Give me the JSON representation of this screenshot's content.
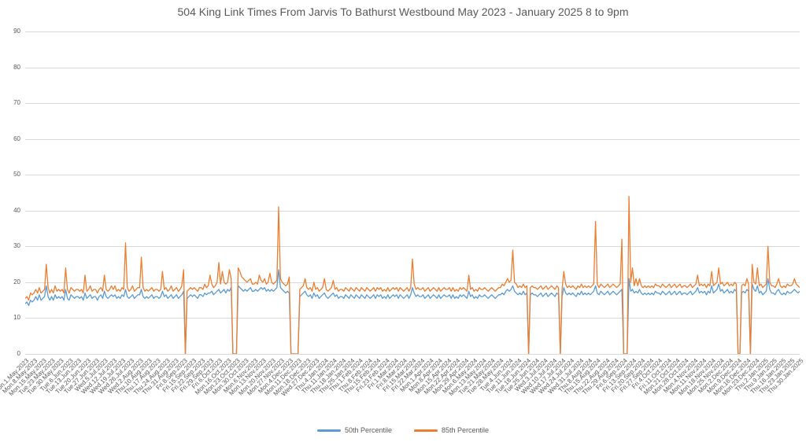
{
  "title": "504 King Link Times From Jarvis To Bathurst Westbound May 2023 - January 2025 8 to 9pm",
  "colors": {
    "p50": "#5B9BD5",
    "p85": "#ED7D31",
    "gridline": "#d9d9d9",
    "text": "#595959"
  },
  "chart_data": {
    "type": "line",
    "title": "504 King Link Times From Jarvis To Bathurst Westbound May 2023 - January 2025 8 to 9pm",
    "xlabel": "",
    "ylabel": "",
    "ylim": [
      0,
      90
    ],
    "y_ticks": [
      0,
      10,
      20,
      30,
      40,
      50,
      60,
      70,
      80,
      90
    ],
    "grid": true,
    "legend_position": "bottom",
    "tick_every": 5,
    "x_tick_labels": [
      "Mon.1.May.2023",
      "Mon.8.May.2023",
      "Mon.15.May.2023",
      "Tue.23.May.2023",
      "Tue.30.May.2023",
      "Tue.6.Jun.2023",
      "Tue.13.Jun.2023",
      "Tue.20.Jun.2023",
      "Tue.27.Jun.2023",
      "Wed.5.Jul.2023",
      "Wed.12.Jul.2023",
      "Wed.19.Jul.2023",
      "Wed.26.Jul.2023",
      "Wed.2.Aug.2023",
      "Thu.10.Aug.2023",
      "Thu.17.Aug.2023",
      "Thu.24.Aug.2023",
      "Thu.31.Aug.2023",
      "Fri.8.Sep.2023",
      "Fri.15.Sep.2023",
      "Fri.22.Sep.2023",
      "Fri.29.Sep.2023",
      "Fri.6.Oct.2023",
      "Mon.16.Oct.2023",
      "Mon.23.Oct.2023",
      "Mon.30.Oct.2023",
      "Mon.6.Nov.2023",
      "Mon.13.Nov.2023",
      "Mon.20.Nov.2023",
      "Mon.27.Nov.2023",
      "Mon.4.Dec.2023",
      "Mon.11.Dec.2023",
      "Mon.18.Dec.2023",
      "Wed.27.Dec.2023",
      "Thu.4.Jan.2024",
      "Thu.11.Jan.2024",
      "Thu.18.Jan.2024",
      "Thu.25.Jan.2024",
      "Thu.1.Feb.2024",
      "Thu.8.Feb.2024",
      "Thu.15.Feb.2024",
      "Fri.23.Feb.2024",
      "Fri.1.Mar.2024",
      "Fri.8.Mar.2024",
      "Fri.15.Mar.2024",
      "Fri.22.Mar.2024",
      "Mon.1.Apr.2024",
      "Mon.8.Apr.2024",
      "Mon.15.Apr.2024",
      "Mon.22.Apr.2024",
      "Mon.29.Apr.2024",
      "Mon.6.May.2024",
      "Mon.13.May.2024",
      "Tue.21.May.2024",
      "Tue.28.May.2024",
      "Tue.4.Jun.2024",
      "Tue.11.Jun.2024",
      "Tue.18.Jun.2024",
      "Tue.25.Jun.2024",
      "Wed.3.Jul.2024",
      "Wed.10.Jul.2024",
      "Wed.17.Jul.2024",
      "Wed.24.Jul.2024",
      "Wed.31.Jul.2024",
      "Thu.8.Aug.2024",
      "Thu.15.Aug.2024",
      "Thu.22.Aug.2024",
      "Thu.29.Aug.2024",
      "Fri.6.Sep.2024",
      "Fri.13.Sep.2024",
      "Fri.20.Sep.2024",
      "Fri.27.Sep.2024",
      "Fri.4.Oct.2024",
      "Fri.11.Oct.2024",
      "Mon.21.Oct.2024",
      "Mon.28.Oct.2024",
      "Mon.4.Nov.2024",
      "Mon.11.Nov.2024",
      "Mon.18.Nov.2024",
      "Mon.25.Nov.2024",
      "Mon.2.Dec.2024",
      "Mon.9.Dec.2024",
      "Mon.16.Dec.2024",
      "Mon.23.Dec.2024",
      "Thu.2.Jan.2025",
      "Thu.9.Jan.2025",
      "Thu.16.Jan.2025",
      "Thu.23.Jan.2025",
      "Thu.30.Jan.2025"
    ],
    "series": [
      {
        "name": "50th Percentile",
        "color": "#5B9BD5",
        "values": [
          14,
          14.5,
          13.5,
          15,
          14.5,
          15,
          16,
          15,
          16.5,
          15,
          15.5,
          16,
          19,
          16,
          15,
          16,
          15,
          16.5,
          15.5,
          16,
          15.5,
          16,
          15,
          18,
          15.5,
          15,
          16.5,
          16,
          15.5,
          16,
          16,
          15.5,
          16,
          15,
          17,
          15.5,
          16,
          16.5,
          15.5,
          16,
          16,
          15,
          16,
          16.5,
          15.5,
          17.5,
          16,
          15.5,
          16,
          16.5,
          16,
          16.5,
          15.5,
          16,
          15.5,
          16.5,
          16,
          18,
          16,
          15.5,
          16,
          16.5,
          15.5,
          16,
          16.5,
          16.5,
          18,
          16,
          15.5,
          16,
          15.5,
          16,
          16.5,
          15.5,
          16,
          16,
          15.5,
          16,
          17.5,
          16,
          16.5,
          15.5,
          16,
          16.5,
          15.5,
          16,
          16.5,
          15.5,
          16,
          16.5,
          17.5,
          0,
          15.5,
          16,
          16.5,
          16,
          16.5,
          16,
          15.5,
          16.5,
          16.5,
          16,
          17,
          16.5,
          17,
          17,
          17.5,
          16.5,
          17,
          17.5,
          18,
          17,
          17.5,
          18,
          17,
          18,
          17.5,
          18.5,
          0,
          0,
          0,
          19,
          18.5,
          18,
          17.5,
          18,
          17.5,
          18,
          18.5,
          17.5,
          17.5,
          18,
          17.5,
          18,
          18.5,
          18,
          18.5,
          17.5,
          18,
          17.5,
          18,
          17.5,
          18,
          18.5,
          23.5,
          18.5,
          18,
          17.5,
          17,
          17.5,
          17,
          0,
          0,
          0,
          0,
          0,
          16,
          16.5,
          17,
          17.5,
          16.5,
          16,
          16.5,
          15.5,
          17,
          16,
          16.5,
          15.5,
          16,
          16.5,
          17,
          16,
          15.5,
          16,
          16.5,
          17,
          16,
          16.5,
          15.5,
          16,
          16,
          15.5,
          16.5,
          16,
          15.5,
          16.5,
          16,
          15.5,
          16.5,
          16,
          15.5,
          16.5,
          16,
          15.5,
          16.5,
          16,
          15.5,
          16,
          16.5,
          15.5,
          16.5,
          16,
          16.5,
          15.5,
          16,
          15.5,
          16.5,
          15.5,
          16,
          16.5,
          16,
          16.5,
          15.5,
          16.5,
          16,
          15.5,
          16,
          16.5,
          15.5,
          16.5,
          18.5,
          17,
          16,
          16.5,
          16,
          16,
          16.5,
          15.5,
          16,
          16.5,
          15.5,
          16,
          16.5,
          16,
          15.5,
          16.5,
          15.5,
          16,
          16.5,
          16,
          16,
          16.5,
          15.5,
          16.5,
          15.5,
          16,
          15.5,
          16.5,
          16,
          16.5,
          16,
          15.5,
          17.5,
          16,
          16.5,
          15.5,
          16,
          15.5,
          16.5,
          16,
          16,
          16.5,
          16,
          15.5,
          16,
          16.5,
          16,
          15.5,
          16,
          16.5,
          16.5,
          17,
          16.5,
          17.5,
          18,
          17.5,
          18,
          19,
          17.5,
          17,
          16.5,
          17,
          16.5,
          17.5,
          16.5,
          17,
          0,
          16.5,
          17,
          16.5,
          16.5,
          16,
          16.5,
          17,
          16,
          16.5,
          17,
          16,
          16.5,
          17,
          16.5,
          16,
          17,
          16.5,
          0,
          16,
          18.5,
          17,
          16.5,
          17,
          16.5,
          17,
          16.5,
          16,
          17,
          16.5,
          17.5,
          16.5,
          17,
          16.5,
          17,
          16.5,
          17,
          17.5,
          19,
          17,
          16.5,
          17.5,
          17,
          16.5,
          17,
          17.5,
          16.5,
          17,
          17.5,
          17,
          16.5,
          17,
          17.5,
          18,
          0,
          0,
          0,
          21,
          17.5,
          18,
          17,
          17.5,
          17,
          18,
          17,
          16.5,
          17,
          16.5,
          17,
          16.5,
          17,
          16.5,
          17.5,
          17,
          17,
          16.5,
          17.5,
          17,
          16.5,
          17,
          17.5,
          16.5,
          17,
          17.5,
          16.5,
          17,
          17.5,
          16.5,
          17,
          17,
          16.5,
          17,
          17.5,
          16.5,
          17,
          17.5,
          18.5,
          17,
          17.5,
          17,
          17.5,
          16.5,
          17.5,
          17,
          19,
          17,
          17.5,
          18,
          19.5,
          17.5,
          18,
          17,
          17.5,
          18,
          17,
          17.5,
          17,
          18,
          17.5,
          0,
          0,
          17,
          17.5,
          17,
          18,
          17.5,
          0,
          19.5,
          18,
          17.5,
          19,
          17,
          17.5,
          16.5,
          17,
          17.5,
          21,
          18,
          17,
          17,
          16.5,
          17.5,
          18,
          17,
          16.5,
          17,
          16.5,
          17.5,
          17,
          17,
          17.5,
          18,
          17.5,
          17,
          17.5
        ]
      },
      {
        "name": "85th Percentile",
        "color": "#ED7D31",
        "values": [
          15.5,
          16,
          15,
          17,
          16.5,
          17,
          18,
          17,
          18.5,
          17,
          17.5,
          18,
          25,
          18.5,
          17,
          18,
          17,
          19,
          17.5,
          18,
          17.5,
          18,
          17,
          24,
          18,
          17,
          18.5,
          18,
          17.5,
          18,
          18,
          17.5,
          18,
          17,
          22,
          17.5,
          18,
          19,
          17.5,
          18,
          18,
          17,
          18,
          18.5,
          17.5,
          22,
          18,
          17.5,
          18,
          19,
          18,
          19,
          17.5,
          18,
          17.5,
          18.5,
          18,
          31,
          18.5,
          17.5,
          18,
          19,
          17.5,
          18,
          18.5,
          18.5,
          27,
          18.5,
          17.5,
          18,
          17.5,
          18,
          18.5,
          17.5,
          18,
          18,
          17.5,
          18,
          23,
          18,
          18.5,
          17.5,
          18,
          19,
          17.5,
          18,
          18.5,
          17.5,
          18,
          19,
          23.5,
          0,
          17.5,
          18,
          18.5,
          18,
          18.5,
          18,
          17.5,
          18.5,
          18.5,
          18,
          19.5,
          18.5,
          19,
          22,
          19.5,
          18.5,
          19,
          20,
          25.5,
          19.5,
          23,
          20,
          19.5,
          20,
          23.5,
          21,
          0,
          0,
          0,
          24,
          23,
          21.5,
          21,
          20.5,
          20,
          20.5,
          21,
          19.5,
          19.5,
          20,
          19.5,
          22,
          20.5,
          20,
          21,
          19.5,
          20,
          22.5,
          20,
          19.5,
          20,
          20.5,
          41,
          21,
          20,
          19.5,
          19,
          19.5,
          21.5,
          0,
          0,
          0,
          0,
          0,
          18,
          18.5,
          19,
          21,
          18.5,
          18,
          18.5,
          17.5,
          20,
          18,
          18.5,
          17.5,
          18,
          18.5,
          21,
          18,
          17.5,
          18,
          18.5,
          20.5,
          18,
          18.5,
          17.5,
          18,
          18,
          17.5,
          18.5,
          18,
          17.5,
          18.5,
          18,
          17.5,
          18.5,
          18,
          17.5,
          18.5,
          18,
          17.5,
          18.5,
          18,
          17.5,
          18,
          18.5,
          17.5,
          18.5,
          18,
          18.5,
          17.5,
          18,
          17.5,
          18.5,
          17.5,
          18,
          18.5,
          18,
          18.5,
          17.5,
          18.5,
          18,
          17.5,
          18,
          18.5,
          17.5,
          18.5,
          26.5,
          19.5,
          18,
          18.5,
          18,
          18,
          18.5,
          17.5,
          18,
          18.5,
          17.5,
          18,
          18.5,
          18,
          17.5,
          18.5,
          17.5,
          18,
          18.5,
          18,
          18,
          18.5,
          17.5,
          18.5,
          17.5,
          18,
          17.5,
          18.5,
          18,
          18.5,
          18,
          17.5,
          22,
          18,
          18.5,
          17.5,
          18,
          17.5,
          18.5,
          18,
          18,
          18.5,
          18,
          17.5,
          18,
          18.5,
          18,
          17.5,
          18,
          18.5,
          18.5,
          19.5,
          19,
          20,
          21,
          20,
          20.5,
          29,
          20,
          19.5,
          18.5,
          19,
          18.5,
          19.5,
          18.5,
          19,
          0,
          18.5,
          19,
          18.5,
          18.5,
          18,
          18.5,
          19,
          18,
          18.5,
          19,
          18,
          18.5,
          19,
          18.5,
          18,
          19,
          18.5,
          0,
          18,
          23,
          19.5,
          18.5,
          19,
          18.5,
          19,
          18.5,
          18,
          19,
          18.5,
          19.5,
          18.5,
          19,
          18.5,
          19,
          18.5,
          19,
          19.5,
          37,
          19.5,
          18.5,
          19.5,
          19,
          18.5,
          19,
          19.5,
          18.5,
          19,
          19.5,
          19,
          18.5,
          19,
          19.5,
          32,
          0,
          0,
          0,
          44,
          20,
          24,
          19,
          21,
          19,
          21,
          19,
          18.5,
          19,
          18.5,
          19,
          18.5,
          19,
          18.5,
          19.5,
          19,
          19,
          18.5,
          19.5,
          19,
          18.5,
          19,
          19.5,
          18.5,
          19,
          19.5,
          18.5,
          19,
          19.5,
          18.5,
          19,
          19,
          18.5,
          19,
          19.5,
          18.5,
          19,
          19.5,
          22,
          19,
          19.5,
          19,
          19.5,
          18.5,
          19.5,
          19,
          23,
          19,
          19.5,
          20,
          24,
          19.5,
          20,
          19,
          19.5,
          20,
          19,
          19.5,
          19,
          20,
          19.5,
          0,
          0,
          19,
          19.5,
          19,
          21,
          19.5,
          0,
          25,
          20,
          19.5,
          24,
          19,
          19.5,
          18.5,
          19,
          19.5,
          30,
          20,
          19,
          19,
          18.5,
          19.5,
          21,
          19,
          18.5,
          19,
          18.5,
          19.5,
          19,
          19,
          19.5,
          21,
          19.5,
          19,
          18.5
        ]
      }
    ]
  }
}
